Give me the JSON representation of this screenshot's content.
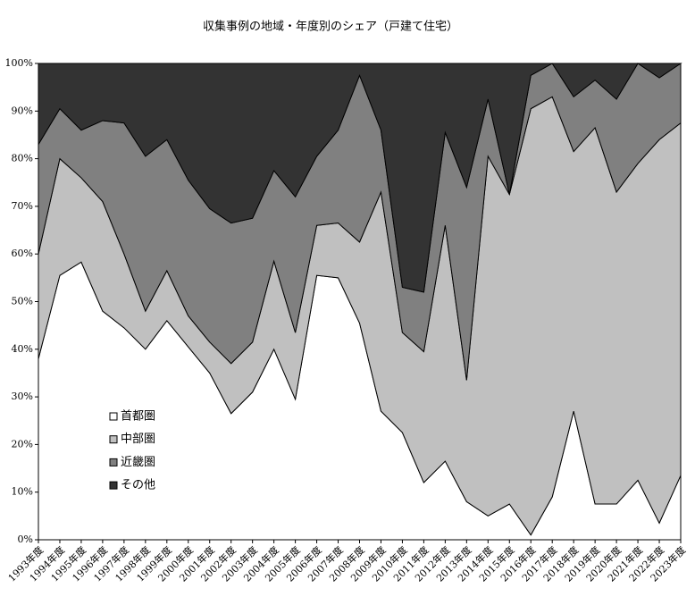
{
  "chart_data": {
    "type": "stacked_area",
    "title": "収集事例の地域・年度別のシェア（戸建て住宅）",
    "categories": [
      "1993年度",
      "1994年度",
      "1995年度",
      "1996年度",
      "1997年度",
      "1998年度",
      "1999年度",
      "2000年度",
      "2001年度",
      "2002年度",
      "2003年度",
      "2004年度",
      "2005年度",
      "2006年度",
      "2007年度",
      "2008年度",
      "2009年度",
      "2010年度",
      "2011年度",
      "2012年度",
      "2013年度",
      "2014年度",
      "2015年度",
      "2016年度",
      "2017年度",
      "2018年度",
      "2019年度",
      "2020年度",
      "2021年度",
      "2022年度",
      "2023年度"
    ],
    "series": [
      {
        "name": "首都圏",
        "color": "#ffffff",
        "values": [
          38,
          55.5,
          58.3,
          48,
          44.5,
          40,
          46,
          40.5,
          35,
          26.5,
          31,
          40,
          29.5,
          55.5,
          55,
          45.5,
          27,
          22.5,
          12,
          16.5,
          8,
          5,
          7.5,
          1,
          9,
          27,
          7.5,
          7.5,
          12.5,
          3.5,
          13.5
        ]
      },
      {
        "name": "中部圏",
        "color": "#c0c0c0",
        "values": [
          22,
          24.5,
          17.7,
          23,
          15.5,
          8,
          10.5,
          6.5,
          6.5,
          10.5,
          10.5,
          18.5,
          14,
          10.5,
          11.5,
          17,
          46,
          21,
          27.5,
          49.5,
          25.5,
          75.5,
          65,
          89.5,
          84,
          54.5,
          79,
          65.5,
          66.5,
          80.5,
          74
        ]
      },
      {
        "name": "近畿圏",
        "color": "#808080",
        "values": [
          23,
          10.5,
          10,
          17,
          27.5,
          32.5,
          27.5,
          28.5,
          28,
          29.5,
          26,
          19,
          28.5,
          14.5,
          19.5,
          35,
          13,
          9.5,
          12.5,
          19.5,
          40.5,
          12,
          0,
          7,
          7,
          11.5,
          10,
          19.5,
          21,
          13,
          12.5
        ]
      },
      {
        "name": "その他",
        "color": "#333333",
        "values": [
          17,
          9.5,
          14,
          12,
          12.5,
          19.5,
          16,
          24.5,
          30.5,
          33.5,
          32.5,
          22.5,
          28,
          19.5,
          14,
          2.5,
          14,
          47,
          48,
          14.5,
          26,
          7.5,
          27.5,
          2.5,
          0,
          7,
          3.5,
          7.5,
          0,
          3,
          0
        ]
      }
    ],
    "ylim": [
      0,
      100
    ],
    "yticks": [
      {
        "value": 0,
        "label": "0%"
      },
      {
        "value": 10,
        "label": "10%"
      },
      {
        "value": 20,
        "label": "20%"
      },
      {
        "value": 30,
        "label": "30%"
      },
      {
        "value": 40,
        "label": "40%"
      },
      {
        "value": 50,
        "label": "50%"
      },
      {
        "value": 60,
        "label": "60%"
      },
      {
        "value": 70,
        "label": "70%"
      },
      {
        "value": 80,
        "label": "80%"
      },
      {
        "value": 90,
        "label": "90%"
      },
      {
        "value": 100,
        "label": "100%"
      }
    ]
  }
}
